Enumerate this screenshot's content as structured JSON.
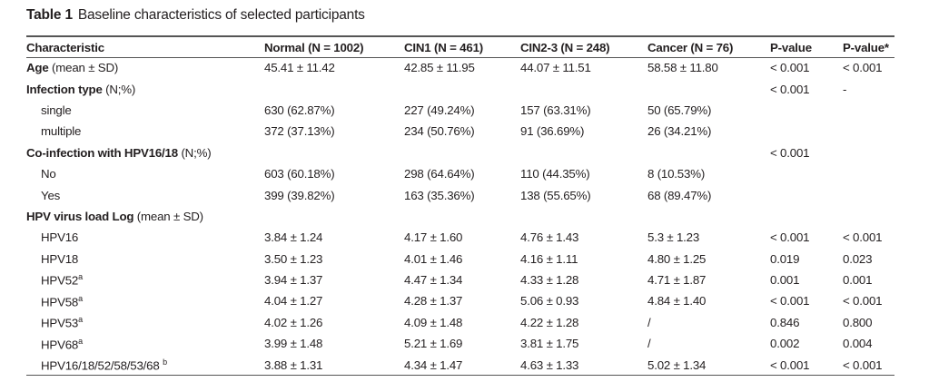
{
  "title": {
    "label": "Table 1",
    "caption": "Baseline characteristics of selected participants"
  },
  "headers": [
    "Characteristic",
    "Normal (N = 1002)",
    "CIN1 (N = 461)",
    "CIN2-3 (N = 248)",
    "Cancer (N = 76)",
    "P-value",
    "P-value*"
  ],
  "rows": [
    {
      "bold": "Age",
      "rest": " (mean ± SD)",
      "indent": false,
      "cells": [
        "45.41 ± 11.42",
        "42.85 ± 11.95",
        "44.07 ± 11.51",
        "58.58 ± 11.80",
        "< 0.001",
        "< 0.001"
      ]
    },
    {
      "bold": "Infection type",
      "rest": " (N;%)",
      "indent": false,
      "cells": [
        "",
        "",
        "",
        "",
        "< 0.001",
        "-"
      ]
    },
    {
      "bold": "",
      "rest": "single",
      "indent": true,
      "cells": [
        "630 (62.87%)",
        "227 (49.24%)",
        "157 (63.31%)",
        "50 (65.79%)",
        "",
        ""
      ]
    },
    {
      "bold": "",
      "rest": "multiple",
      "indent": true,
      "cells": [
        "372 (37.13%)",
        "234 (50.76%)",
        "91 (36.69%)",
        "26 (34.21%)",
        "",
        ""
      ]
    },
    {
      "bold": "Co-infection with HPV16/18",
      "rest": " (N;%)",
      "indent": false,
      "cells": [
        "",
        "",
        "",
        "",
        "< 0.001",
        ""
      ]
    },
    {
      "bold": "",
      "rest": "No",
      "indent": true,
      "cells": [
        "603 (60.18%)",
        "298 (64.64%)",
        "110 (44.35%)",
        "8 (10.53%)",
        "",
        ""
      ]
    },
    {
      "bold": "",
      "rest": "Yes",
      "indent": true,
      "cells": [
        "399 (39.82%)",
        "163 (35.36%)",
        "138 (55.65%)",
        "68 (89.47%)",
        "",
        ""
      ]
    },
    {
      "bold": "HPV virus load Log",
      "rest": " (mean ± SD)",
      "indent": false,
      "cells": [
        "",
        "",
        "",
        "",
        "",
        ""
      ]
    },
    {
      "bold": "",
      "rest": "HPV16",
      "indent": true,
      "cells": [
        "3.84 ± 1.24",
        "4.17 ± 1.60",
        "4.76 ± 1.43",
        "5.3 ± 1.23",
        "< 0.001",
        "< 0.001"
      ]
    },
    {
      "bold": "",
      "rest": "HPV18",
      "indent": true,
      "cells": [
        "3.50 ± 1.23",
        "4.01 ± 1.46",
        "4.16 ± 1.11",
        "4.80 ± 1.25",
        "0.019",
        "0.023"
      ]
    },
    {
      "bold": "",
      "rest": "HPV52",
      "sup": "a",
      "indent": true,
      "cells": [
        "3.94 ± 1.37",
        "4.47 ± 1.34",
        "4.33 ± 1.28",
        "4.71 ± 1.87",
        "0.001",
        "0.001"
      ]
    },
    {
      "bold": "",
      "rest": "HPV58",
      "sup": "a",
      "indent": true,
      "cells": [
        "4.04 ± 1.27",
        "4.28 ± 1.37",
        "5.06 ± 0.93",
        "4.84 ± 1.40",
        "< 0.001",
        "< 0.001"
      ]
    },
    {
      "bold": "",
      "rest": "HPV53",
      "sup": "a",
      "indent": true,
      "cells": [
        "4.02 ± 1.26",
        "4.09 ± 1.48",
        "4.22 ± 1.28",
        "/",
        "0.846",
        "0.800"
      ]
    },
    {
      "bold": "",
      "rest": "HPV68",
      "sup": "a",
      "indent": true,
      "cells": [
        "3.99 ± 1.48",
        "5.21 ± 1.69",
        "3.81 ± 1.75",
        "/",
        "0.002",
        "0.004"
      ]
    },
    {
      "bold": "",
      "rest": "HPV16/18/52/58/53/68 ",
      "sup": "b",
      "indent": true,
      "cells": [
        "3.88 ± 1.31",
        "4.34 ± 1.47",
        "4.63 ± 1.33",
        "5.02 ± 1.34",
        "< 0.001",
        "< 0.001"
      ]
    }
  ]
}
